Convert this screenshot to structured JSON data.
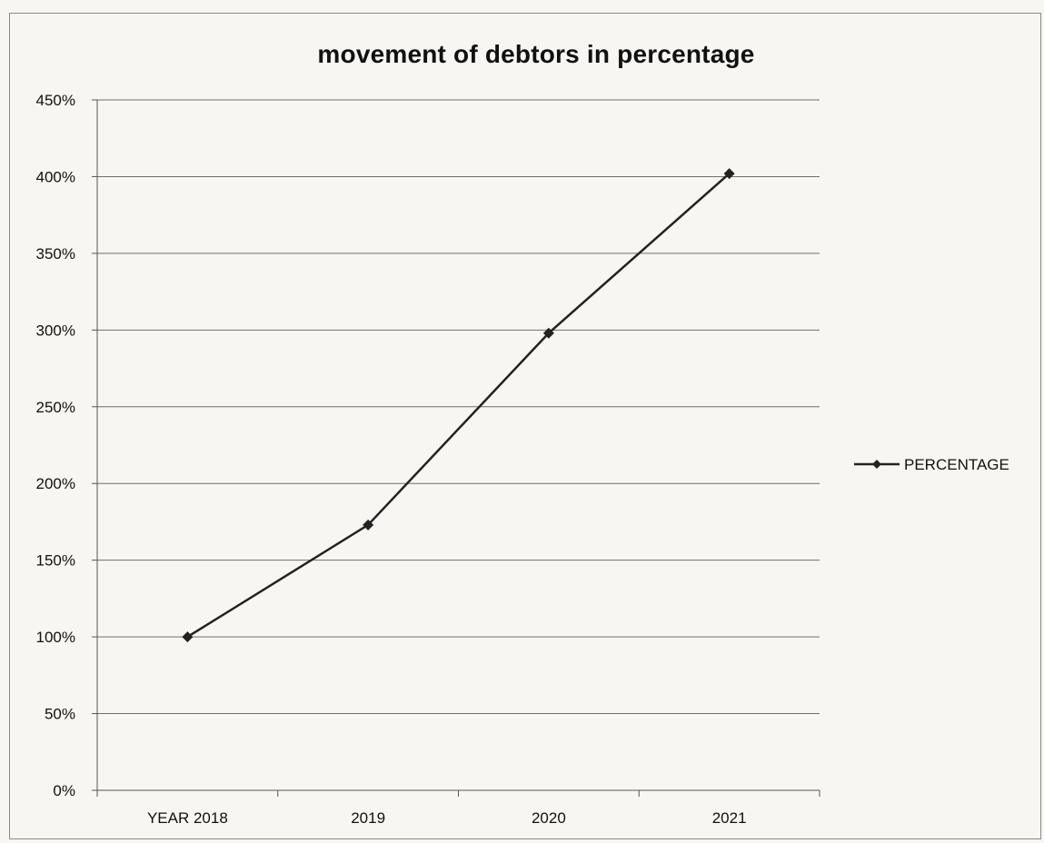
{
  "chart_data": {
    "type": "line",
    "title": "movement of debtors in percentage",
    "categories": [
      "YEAR 2018",
      "2019",
      "2020",
      "2021"
    ],
    "series": [
      {
        "name": "PERCENTAGE",
        "values": [
          100,
          173,
          298,
          402
        ],
        "color": "#222222",
        "marker": "diamond"
      }
    ],
    "y_ticks": [
      "0%",
      "50%",
      "100%",
      "150%",
      "200%",
      "250%",
      "300%",
      "350%",
      "400%",
      "450%"
    ],
    "ylim": [
      0,
      450
    ],
    "xlabel": "",
    "ylabel": "",
    "grid": true,
    "legend": "right"
  }
}
